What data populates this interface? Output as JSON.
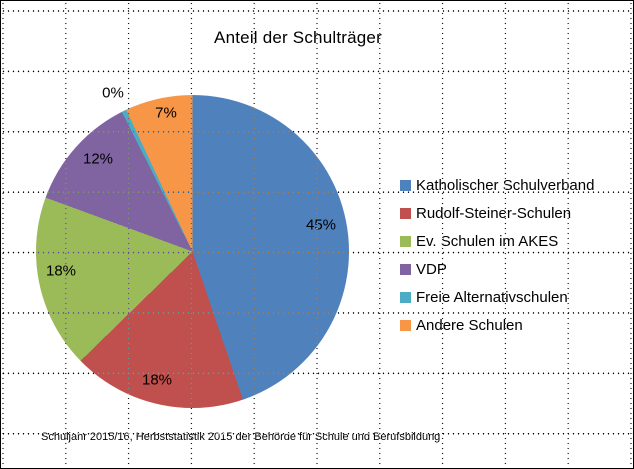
{
  "chart_data": {
    "type": "pie",
    "title": "Anteil der Schulträger",
    "annotation": "Schuljahr 2015/16, Herbststatistik 2015 der Behörde für Schule und Berufsbildung",
    "legend_position": "right",
    "labels_format": "percent",
    "background": "#ffffff",
    "gridlines": "dotted",
    "slices": [
      {
        "label": "Katholischer Schulverband",
        "value": 45,
        "display": "45%",
        "color": "#4F81BD"
      },
      {
        "label": "Rudolf-Steiner-Schulen",
        "value": 18,
        "display": "18%",
        "color": "#C0504D"
      },
      {
        "label": "Ev. Schulen im AKES",
        "value": 18,
        "display": "18%",
        "color": "#9BBB59"
      },
      {
        "label": "VDP",
        "value": 12,
        "display": "12%",
        "color": "#8064A2"
      },
      {
        "label": "Freie Alternativschulen",
        "value": 0,
        "display": "0%",
        "color": "#4BACC6"
      },
      {
        "label": "Andere Schulen",
        "value": 7,
        "display": "7%",
        "color": "#F79646"
      }
    ]
  }
}
